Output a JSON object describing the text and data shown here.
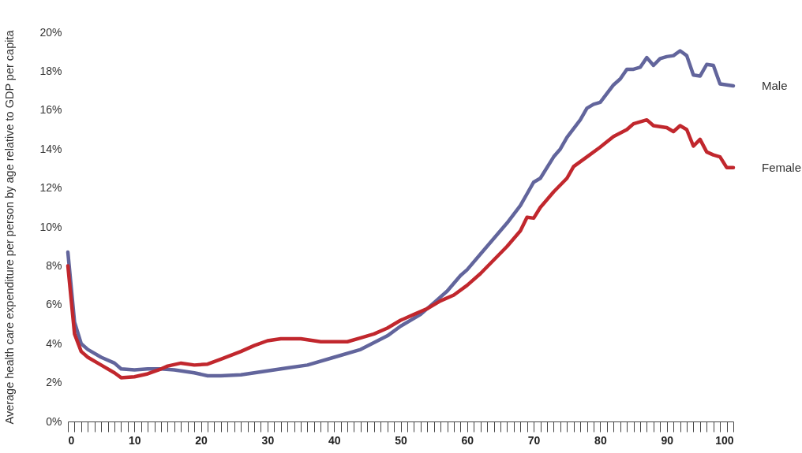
{
  "chart_data": {
    "type": "line",
    "ylabel": "Average health care expenditure per person by age relative to GDP per capita",
    "xlim": [
      0,
      100
    ],
    "ylim": [
      0,
      20
    ],
    "yticks": [
      {
        "value": 0,
        "label": "0%"
      },
      {
        "value": 2,
        "label": "2%"
      },
      {
        "value": 4,
        "label": "4%"
      },
      {
        "value": 6,
        "label": "6%"
      },
      {
        "value": 8,
        "label": "8%"
      },
      {
        "value": 10,
        "label": "10%"
      },
      {
        "value": 12,
        "label": "12%"
      },
      {
        "value": 14,
        "label": "14%"
      },
      {
        "value": 16,
        "label": "16%"
      },
      {
        "value": 18,
        "label": "18%"
      },
      {
        "value": 20,
        "label": "20%"
      }
    ],
    "xticks": [
      0,
      {
        "value": 1,
        "label": null
      },
      {
        "value": 2,
        "label": null
      },
      {
        "value": 3,
        "label": null
      },
      {
        "value": 4,
        "label": null
      },
      {
        "value": 5,
        "label": null
      },
      {
        "value": 6,
        "label": null
      },
      {
        "value": 7,
        "label": null
      },
      {
        "value": 8,
        "label": null
      },
      {
        "value": 9,
        "label": null
      },
      10,
      {
        "value": 11,
        "label": null
      },
      {
        "value": 12,
        "label": null
      },
      {
        "value": 13,
        "label": null
      },
      {
        "value": 14,
        "label": null
      },
      {
        "value": 15,
        "label": null
      },
      {
        "value": 16,
        "label": null
      },
      {
        "value": 17,
        "label": null
      },
      {
        "value": 18,
        "label": null
      },
      {
        "value": 19,
        "label": null
      },
      20,
      {
        "value": 21,
        "label": null
      },
      {
        "value": 22,
        "label": null
      },
      {
        "value": 23,
        "label": null
      },
      {
        "value": 24,
        "label": null
      },
      {
        "value": 25,
        "label": null
      },
      {
        "value": 26,
        "label": null
      },
      {
        "value": 27,
        "label": null
      },
      {
        "value": 28,
        "label": null
      },
      {
        "value": 29,
        "label": null
      },
      30,
      {
        "value": 31,
        "label": null
      },
      {
        "value": 32,
        "label": null
      },
      {
        "value": 33,
        "label": null
      },
      {
        "value": 34,
        "label": null
      },
      {
        "value": 35,
        "label": null
      },
      {
        "value": 36,
        "label": null
      },
      {
        "value": 37,
        "label": null
      },
      {
        "value": 38,
        "label": null
      },
      {
        "value": 39,
        "label": null
      },
      40,
      {
        "value": 41,
        "label": null
      },
      {
        "value": 42,
        "label": null
      },
      {
        "value": 43,
        "label": null
      },
      {
        "value": 44,
        "label": null
      },
      {
        "value": 45,
        "label": null
      },
      {
        "value": 46,
        "label": null
      },
      {
        "value": 47,
        "label": null
      },
      {
        "value": 48,
        "label": null
      },
      {
        "value": 49,
        "label": null
      },
      50,
      {
        "value": 51,
        "label": null
      },
      {
        "value": 52,
        "label": null
      },
      {
        "value": 53,
        "label": null
      },
      {
        "value": 54,
        "label": null
      },
      {
        "value": 55,
        "label": null
      },
      {
        "value": 56,
        "label": null
      },
      {
        "value": 57,
        "label": null
      },
      {
        "value": 58,
        "label": null
      },
      {
        "value": 59,
        "label": null
      },
      60,
      {
        "value": 61,
        "label": null
      },
      {
        "value": 62,
        "label": null
      },
      {
        "value": 63,
        "label": null
      },
      {
        "value": 64,
        "label": null
      },
      {
        "value": 65,
        "label": null
      },
      {
        "value": 66,
        "label": null
      },
      {
        "value": 67,
        "label": null
      },
      {
        "value": 68,
        "label": null
      },
      {
        "value": 69,
        "label": null
      },
      70,
      {
        "value": 71,
        "label": null
      },
      {
        "value": 72,
        "label": null
      },
      {
        "value": 73,
        "label": null
      },
      {
        "value": 74,
        "label": null
      },
      {
        "value": 75,
        "label": null
      },
      {
        "value": 76,
        "label": null
      },
      {
        "value": 77,
        "label": null
      },
      {
        "value": 78,
        "label": null
      },
      {
        "value": 79,
        "label": null
      },
      80,
      {
        "value": 81,
        "label": null
      },
      {
        "value": 82,
        "label": null
      },
      {
        "value": 83,
        "label": null
      },
      {
        "value": 84,
        "label": null
      },
      {
        "value": 85,
        "label": null
      },
      {
        "value": 86,
        "label": null
      },
      {
        "value": 87,
        "label": null
      },
      {
        "value": 88,
        "label": null
      },
      {
        "value": 89,
        "label": null
      },
      90,
      {
        "value": 91,
        "label": null
      },
      {
        "value": 92,
        "label": null
      },
      {
        "value": 93,
        "label": null
      },
      {
        "value": 94,
        "label": null
      },
      {
        "value": 95,
        "label": null
      },
      {
        "value": 96,
        "label": null
      },
      {
        "value": 97,
        "label": null
      },
      {
        "value": 98,
        "label": null
      },
      {
        "value": 99,
        "label": null
      },
      100
    ],
    "series": [
      {
        "name": "Male",
        "color": "#62659c",
        "x": [
          0,
          1,
          2,
          3,
          5,
          7,
          8,
          10,
          12,
          14,
          16,
          17,
          19,
          21,
          23,
          26,
          30,
          33,
          36,
          40,
          44,
          48,
          50,
          53,
          55,
          57,
          59,
          60,
          62,
          64,
          66,
          68,
          69,
          70,
          71,
          73,
          74,
          75,
          77,
          78,
          79,
          80,
          82,
          83,
          84,
          85,
          86,
          87,
          88,
          89,
          90,
          91,
          92,
          93,
          94,
          95,
          96,
          97,
          98,
          99,
          100
        ],
        "values": [
          8.7,
          5.1,
          4.0,
          3.7,
          3.3,
          3.0,
          2.7,
          2.65,
          2.7,
          2.7,
          2.65,
          2.6,
          2.5,
          2.35,
          2.35,
          2.4,
          2.6,
          2.75,
          2.9,
          3.3,
          3.7,
          4.4,
          4.9,
          5.5,
          6.1,
          6.7,
          7.5,
          7.8,
          8.6,
          9.4,
          10.2,
          11.1,
          11.7,
          12.3,
          12.5,
          13.6,
          14.0,
          14.6,
          15.5,
          16.1,
          16.3,
          16.4,
          17.3,
          17.6,
          18.1,
          18.1,
          18.2,
          18.7,
          18.3,
          18.65,
          18.75,
          18.8,
          19.05,
          18.8,
          17.8,
          17.75,
          18.35,
          18.3,
          17.35,
          17.3,
          17.25
        ]
      },
      {
        "name": "Female",
        "color": "#c1272d",
        "x": [
          0,
          1,
          2,
          3,
          5,
          7,
          8,
          10,
          12,
          14,
          15,
          17,
          19,
          21,
          23,
          26,
          28,
          30,
          32,
          35,
          38,
          40,
          42,
          44,
          46,
          48,
          50,
          52,
          54,
          56,
          58,
          60,
          62,
          64,
          66,
          68,
          69,
          70,
          71,
          73,
          75,
          76,
          78,
          80,
          82,
          84,
          85,
          87,
          88,
          90,
          91,
          92,
          93,
          94,
          95,
          96,
          97,
          98,
          99,
          100
        ],
        "values": [
          8.0,
          4.5,
          3.6,
          3.3,
          2.9,
          2.5,
          2.25,
          2.3,
          2.45,
          2.7,
          2.85,
          3.0,
          2.9,
          2.95,
          3.2,
          3.6,
          3.9,
          4.15,
          4.25,
          4.25,
          4.1,
          4.1,
          4.1,
          4.3,
          4.5,
          4.8,
          5.2,
          5.5,
          5.8,
          6.2,
          6.5,
          7.0,
          7.6,
          8.3,
          9.0,
          9.8,
          10.5,
          10.45,
          11.0,
          11.8,
          12.5,
          13.1,
          13.6,
          14.1,
          14.65,
          15.0,
          15.3,
          15.5,
          15.2,
          15.1,
          14.9,
          15.2,
          15.0,
          14.15,
          14.5,
          13.85,
          13.7,
          13.6,
          13.05,
          13.05
        ]
      }
    ]
  }
}
